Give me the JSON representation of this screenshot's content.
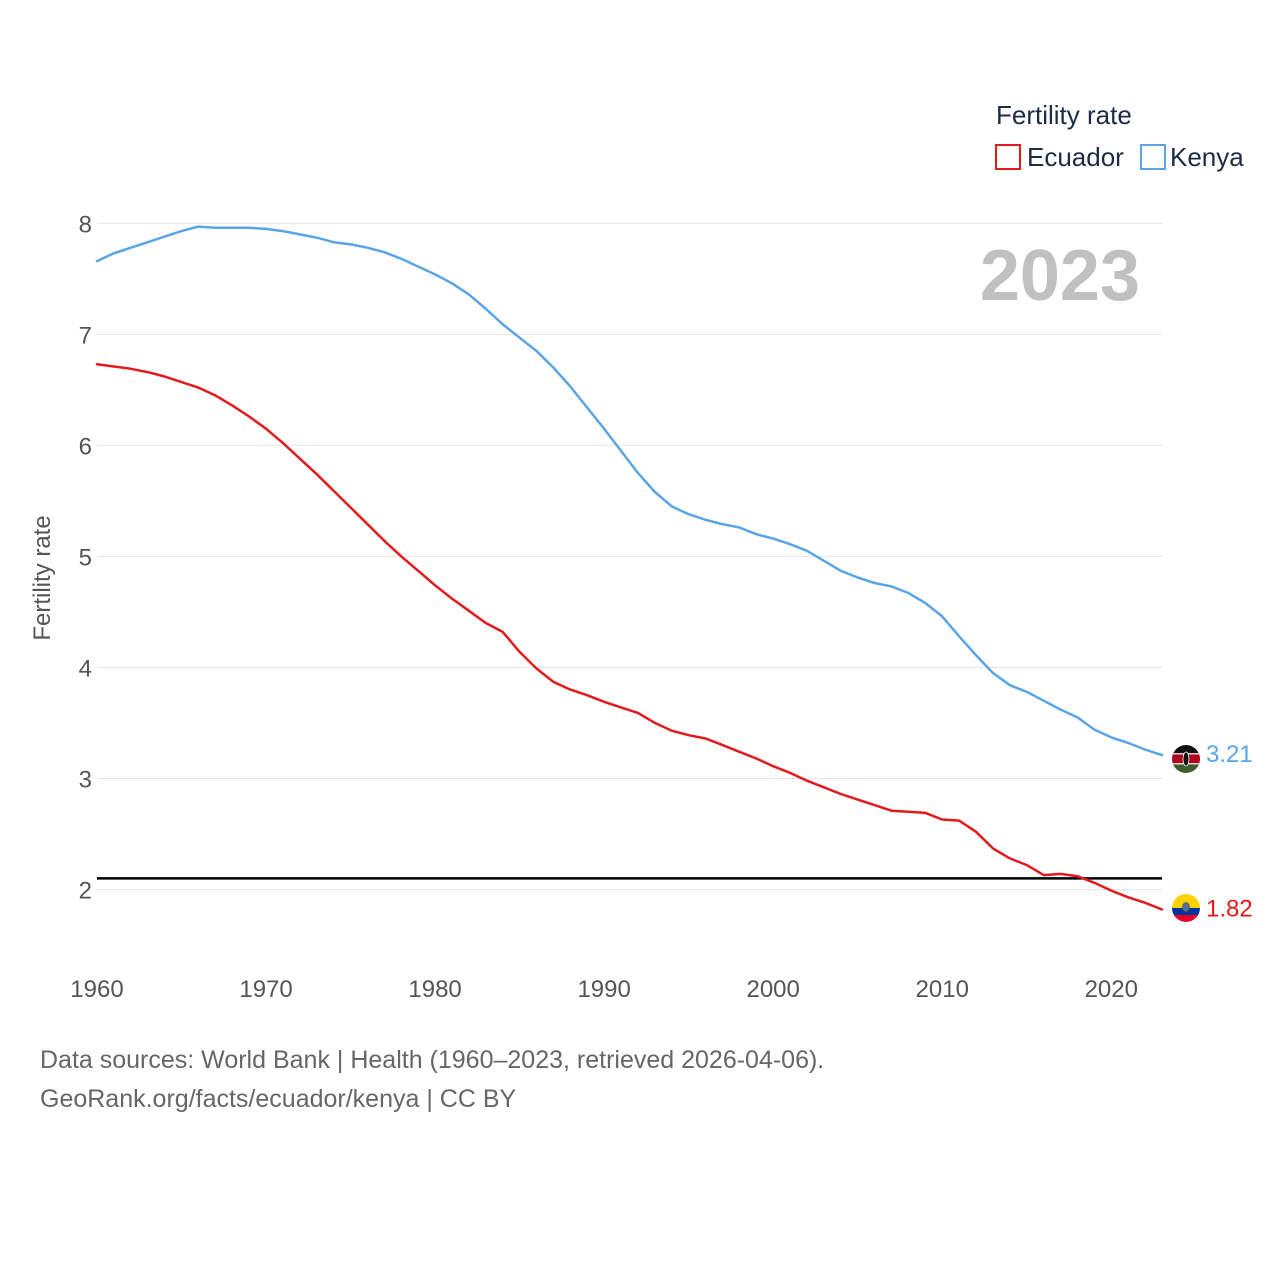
{
  "chart_data": {
    "type": "line",
    "title": "Fertility rate",
    "xlabel": "",
    "ylabel": "Fertility rate",
    "year_label": "2023",
    "xlim": [
      1960,
      2023
    ],
    "ylim": [
      1.5,
      8.3
    ],
    "x_ticks": [
      1960,
      1970,
      1980,
      1990,
      2000,
      2010,
      2020
    ],
    "y_ticks": [
      2,
      3,
      4,
      5,
      6,
      7,
      8
    ],
    "reference_line": {
      "value": 2.1,
      "color": "#000000"
    },
    "x": [
      1960,
      1961,
      1962,
      1963,
      1964,
      1965,
      1966,
      1967,
      1968,
      1969,
      1970,
      1971,
      1972,
      1973,
      1974,
      1975,
      1976,
      1977,
      1978,
      1979,
      1980,
      1981,
      1982,
      1983,
      1984,
      1985,
      1986,
      1987,
      1988,
      1989,
      1990,
      1991,
      1992,
      1993,
      1994,
      1995,
      1996,
      1997,
      1998,
      1999,
      2000,
      2001,
      2002,
      2003,
      2004,
      2005,
      2006,
      2007,
      2008,
      2009,
      2010,
      2011,
      2012,
      2013,
      2014,
      2015,
      2016,
      2017,
      2018,
      2019,
      2020,
      2021,
      2022,
      2023
    ],
    "series": [
      {
        "name": "Ecuador",
        "color": "#e31a1c",
        "end_label": "1.82",
        "flag": "ecuador-flag",
        "values": [
          6.73,
          6.71,
          6.69,
          6.66,
          6.62,
          6.57,
          6.52,
          6.45,
          6.36,
          6.26,
          6.15,
          6.02,
          5.88,
          5.74,
          5.59,
          5.44,
          5.29,
          5.14,
          5.0,
          4.87,
          4.74,
          4.62,
          4.51,
          4.4,
          4.32,
          4.14,
          3.99,
          3.87,
          3.8,
          3.75,
          3.69,
          3.64,
          3.59,
          3.5,
          3.43,
          3.39,
          3.36,
          3.3,
          3.24,
          3.18,
          3.11,
          3.05,
          2.98,
          2.92,
          2.86,
          2.81,
          2.76,
          2.71,
          2.7,
          2.69,
          2.63,
          2.62,
          2.52,
          2.37,
          2.28,
          2.22,
          2.13,
          2.14,
          2.12,
          2.06,
          1.99,
          1.93,
          1.88,
          1.82
        ]
      },
      {
        "name": "Kenya",
        "color": "#5aa5e6",
        "end_label": "3.21",
        "flag": "kenya-flag",
        "values": [
          7.66,
          7.73,
          7.78,
          7.83,
          7.88,
          7.93,
          7.97,
          7.96,
          7.96,
          7.96,
          7.95,
          7.93,
          7.9,
          7.87,
          7.83,
          7.81,
          7.78,
          7.74,
          7.68,
          7.61,
          7.54,
          7.46,
          7.36,
          7.23,
          7.09,
          6.97,
          6.85,
          6.7,
          6.53,
          6.34,
          6.15,
          5.95,
          5.75,
          5.58,
          5.45,
          5.38,
          5.33,
          5.29,
          5.26,
          5.2,
          5.16,
          5.11,
          5.05,
          4.96,
          4.87,
          4.81,
          4.76,
          4.73,
          4.67,
          4.58,
          4.46,
          4.28,
          4.11,
          3.95,
          3.84,
          3.78,
          3.7,
          3.62,
          3.55,
          3.44,
          3.37,
          3.32,
          3.26,
          3.21
        ]
      }
    ]
  },
  "footer": {
    "line1": "Data sources: World Bank | Health (1960–2023, retrieved 2026-04-06).",
    "line2": "GeoRank.org/facts/ecuador/kenya | CC BY"
  }
}
